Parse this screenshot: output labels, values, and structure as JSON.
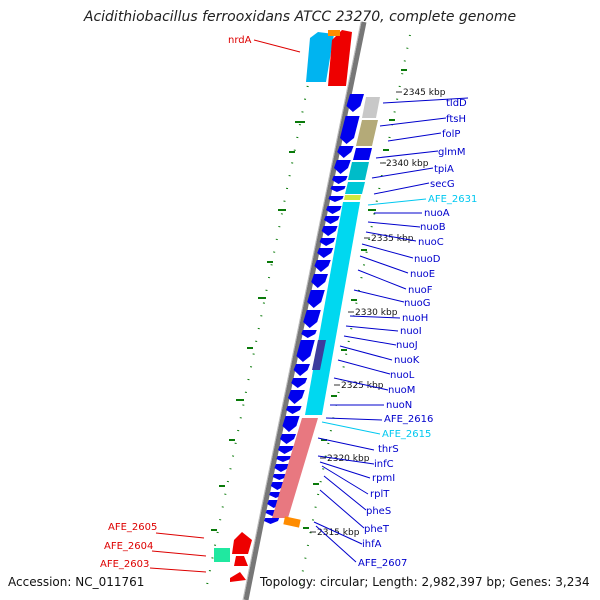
{
  "title": "Acidithiobacillus ferrooxidans ATCC 23270, complete genome",
  "accession": "Accession: NC_011761",
  "topology": "Topology: circular; Length: 2,982,397 bp; Genes: 3,234",
  "colors": {
    "blue_gene": "#0000ee",
    "cyan_gene": "#00c8f0",
    "red_gene": "#ee0000",
    "label_blue": "#0000cc",
    "label_cyan": "#00c8f0",
    "label_red": "#dd0000",
    "gc_green": "#006600"
  },
  "ticks": [
    "2345 kbp",
    "2340 kbp",
    "2335 kbp",
    "2330 kbp",
    "2325 kbp",
    "2320 kbp",
    "2315 kbp"
  ],
  "labels": {
    "nrdA": "nrdA",
    "tldD": "tldD",
    "ftsH": "ftsH",
    "folP": "folP",
    "glmM": "glmM",
    "tpiA": "tpiA",
    "secG": "secG",
    "AFE_2631": "AFE_2631",
    "nuoA": "nuoA",
    "nuoB": "nuoB",
    "nuoC": "nuoC",
    "nuoD": "nuoD",
    "nuoE": "nuoE",
    "nuoF": "nuoF",
    "nuoG": "nuoG",
    "nuoH": "nuoH",
    "nuoI": "nuoI",
    "nuoJ": "nuoJ",
    "nuoK": "nuoK",
    "nuoL": "nuoL",
    "nuoM": "nuoM",
    "nuoN": "nuoN",
    "AFE_2616": "AFE_2616",
    "AFE_2615": "AFE_2615",
    "thrS": "thrS",
    "infC": "infC",
    "rpmI": "rpmI",
    "rplT": "rplT",
    "pheS": "pheS",
    "pheT": "pheT",
    "ihfA": "ihfA",
    "AFE_2607": "AFE_2607",
    "AFE_2605": "AFE_2605",
    "AFE_2604": "AFE_2604",
    "AFE_2603": "AFE_2603"
  }
}
